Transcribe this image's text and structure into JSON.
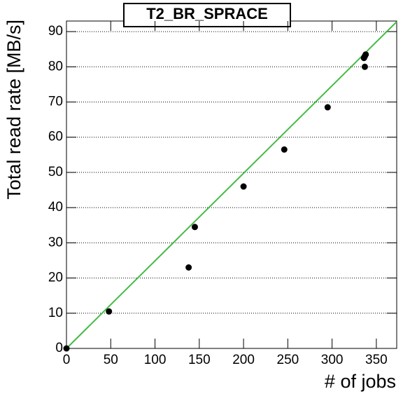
{
  "chart_data": {
    "type": "scatter",
    "title": "T2_BR_SPRACE",
    "x_label": "# of jobs",
    "y_label": "Total read rate [MB/s]",
    "series": [
      {
        "color": "#000000",
        "x": [
          0,
          48,
          138,
          145,
          200,
          246,
          295,
          337,
          337,
          338,
          336
        ],
        "values": [
          0,
          10.5,
          23,
          34.5,
          46,
          56.5,
          68.5,
          80,
          83,
          83.5,
          82.5
        ]
      }
    ],
    "fit": {
      "color": "#44bb44",
      "x": [
        0,
        373
      ],
      "values": [
        0,
        92.8
      ]
    },
    "xlim": [
      0,
      373
    ],
    "ylim": [
      0,
      93
    ],
    "xticks": [
      0,
      50,
      100,
      150,
      200,
      250,
      300,
      350
    ],
    "yticks": [
      0,
      10,
      20,
      30,
      40,
      50,
      60,
      70,
      80,
      90
    ],
    "grid": true
  }
}
